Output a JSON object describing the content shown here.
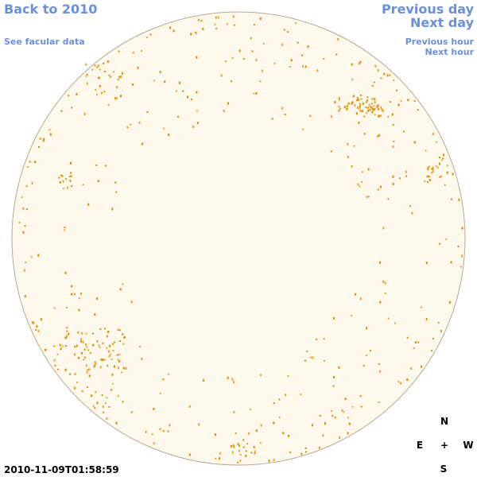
{
  "links": {
    "back": "Back to 2010",
    "facular": "See facular data",
    "prev_day": "Previous day",
    "next_day": "Next day",
    "prev_hour": "Previous hour",
    "next_hour": "Next hour"
  },
  "timestamp": "2010-11-09T01:58:59",
  "compass": {
    "north": "N",
    "east": "E",
    "center": "+",
    "west": "W",
    "south": "S"
  }
}
